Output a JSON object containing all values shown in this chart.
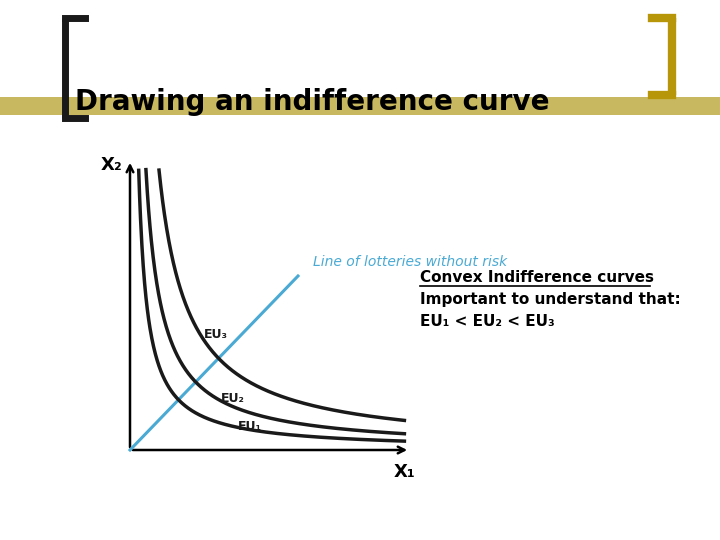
{
  "title": "Drawing an indifference curve",
  "title_color": "#000000",
  "title_fontsize": 20,
  "background_color": "#ffffff",
  "title_bg_color": "#c8b860",
  "bracket_left_color": "#1a1a1a",
  "bracket_right_color": "#b8960a",
  "line_of_lotteries_color": "#4aaad4",
  "line_of_lotteries_label": "Line of lotteries without risk",
  "curve_color": "#1a1a1a",
  "axis_label_x": "X₁",
  "axis_label_y": "X₂",
  "eu_labels": [
    "EU₁",
    "EU₂",
    "EU₃"
  ],
  "convex_title": "Convex Indifference curves",
  "convex_desc": "Important to understand that:",
  "convex_inequality": "EU₁ < EU₂ < EU₃",
  "curve_k_values": [
    0.03,
    0.055,
    0.1
  ],
  "axis_xlim": [
    0,
    1.0
  ],
  "axis_ylim": [
    0,
    1.0
  ]
}
